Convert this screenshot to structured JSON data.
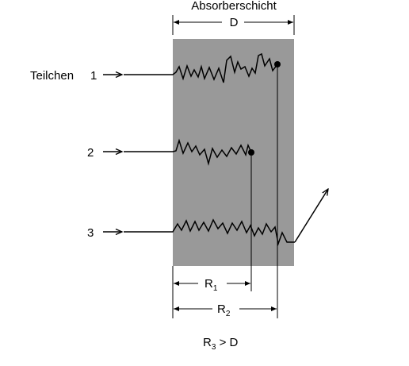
{
  "diagram": {
    "layer_title": "Absorberschicht",
    "thickness_label": "D",
    "particle_label": "Teilchen",
    "particles": [
      {
        "number": "1"
      },
      {
        "number": "2"
      },
      {
        "number": "3"
      }
    ],
    "ranges": [
      {
        "letter": "R",
        "index": "1"
      },
      {
        "letter": "R",
        "index": "2"
      }
    ],
    "condition": {
      "letter": "R",
      "index": "3",
      "rest": " > D"
    },
    "colors": {
      "absorber": "#999999",
      "line": "#000000",
      "background": "#ffffff"
    }
  }
}
